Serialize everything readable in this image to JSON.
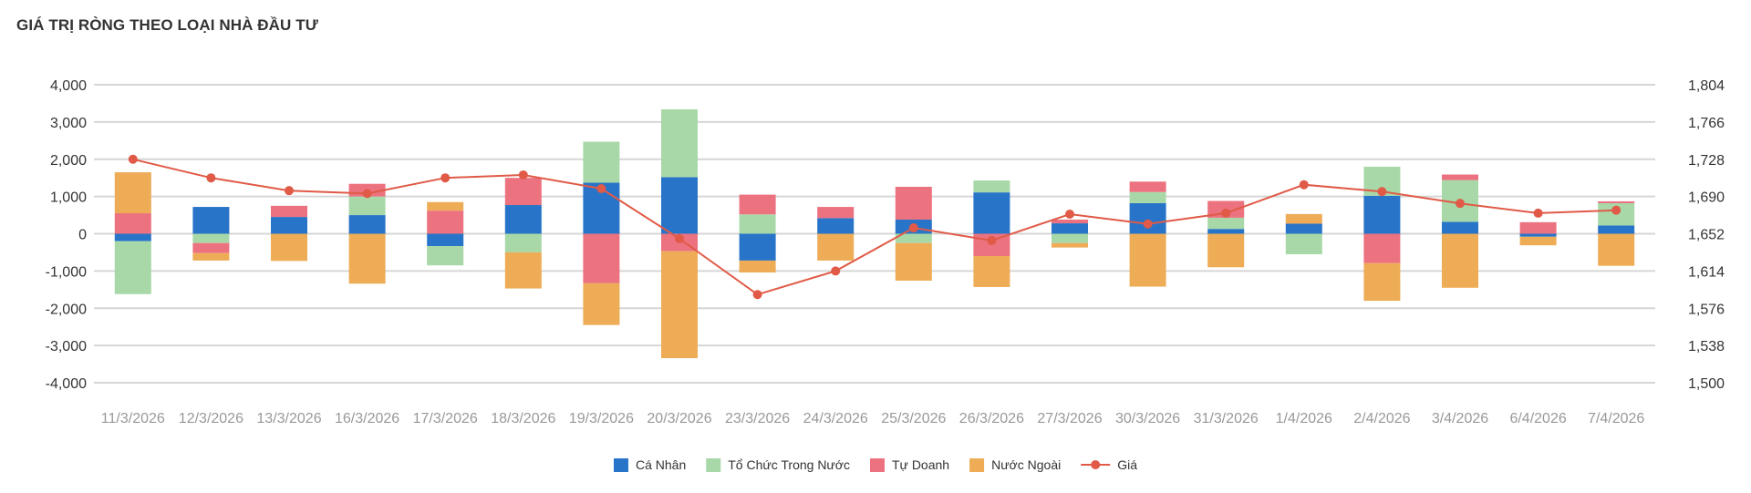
{
  "chart_data": {
    "type": "bar",
    "stacked": true,
    "title": "GIÁ TRỊ RÒNG THEO LOẠI NHÀ ĐẦU TƯ",
    "categories": [
      "11/3/2026",
      "12/3/2026",
      "13/3/2026",
      "16/3/2026",
      "17/3/2026",
      "18/3/2026",
      "19/3/2026",
      "20/3/2026",
      "23/3/2026",
      "24/3/2026",
      "25/3/2026",
      "26/3/2026",
      "27/3/2026",
      "30/3/2026",
      "31/3/2026",
      "1/4/2026",
      "2/4/2026",
      "3/4/2026",
      "6/4/2026",
      "7/4/2026"
    ],
    "ylim": [
      -4000,
      4000
    ],
    "y_ticks": [
      "4,000",
      "3,000",
      "2,000",
      "1,000",
      "0",
      "-1,000",
      "-2,000",
      "-3,000",
      "-4,000"
    ],
    "y2lim": [
      1500,
      1804
    ],
    "y2_ticks": [
      "1,804",
      "1,766",
      "1,728",
      "1,690",
      "1,652",
      "1,614",
      "1,576",
      "1,538",
      "1,500"
    ],
    "grid": true,
    "legend_position": "bottom",
    "series": [
      {
        "name": "Cá Nhân",
        "color": "#2874c8",
        "values": [
          -200,
          720,
          450,
          500,
          -330,
          770,
          1370,
          1520,
          -720,
          420,
          380,
          1110,
          280,
          820,
          130,
          270,
          1020,
          320,
          -80,
          220
        ]
      },
      {
        "name": "Tổ Chức Trong Nước",
        "color": "#a8d8a8",
        "values": [
          -1420,
          -250,
          0,
          500,
          -520,
          -500,
          1100,
          1820,
          520,
          0,
          -250,
          320,
          -250,
          300,
          300,
          -550,
          780,
          1120,
          0,
          600
        ]
      },
      {
        "name": "Tự Doanh",
        "color": "#ec7280",
        "values": [
          550,
          -270,
          300,
          340,
          620,
          730,
          -1330,
          -470,
          530,
          300,
          880,
          -600,
          100,
          280,
          450,
          0,
          -790,
          150,
          310,
          50
        ]
      },
      {
        "name": "Nước Ngoài",
        "color": "#eeac56",
        "values": [
          1100,
          -200,
          -730,
          -1340,
          230,
          -970,
          -1120,
          -2870,
          -320,
          -720,
          -1010,
          -830,
          -120,
          -1420,
          -900,
          260,
          -1010,
          -1450,
          -230,
          -860
        ]
      }
    ],
    "line": {
      "name": "Giá",
      "color": "#e05a47",
      "axis": "right",
      "values": [
        1728,
        1709,
        1696,
        1693,
        1709,
        1712,
        1698,
        1647,
        1590,
        1614,
        1658,
        1645,
        1672,
        1662,
        1673,
        1702,
        1695,
        1683,
        1673,
        1676
      ]
    }
  }
}
